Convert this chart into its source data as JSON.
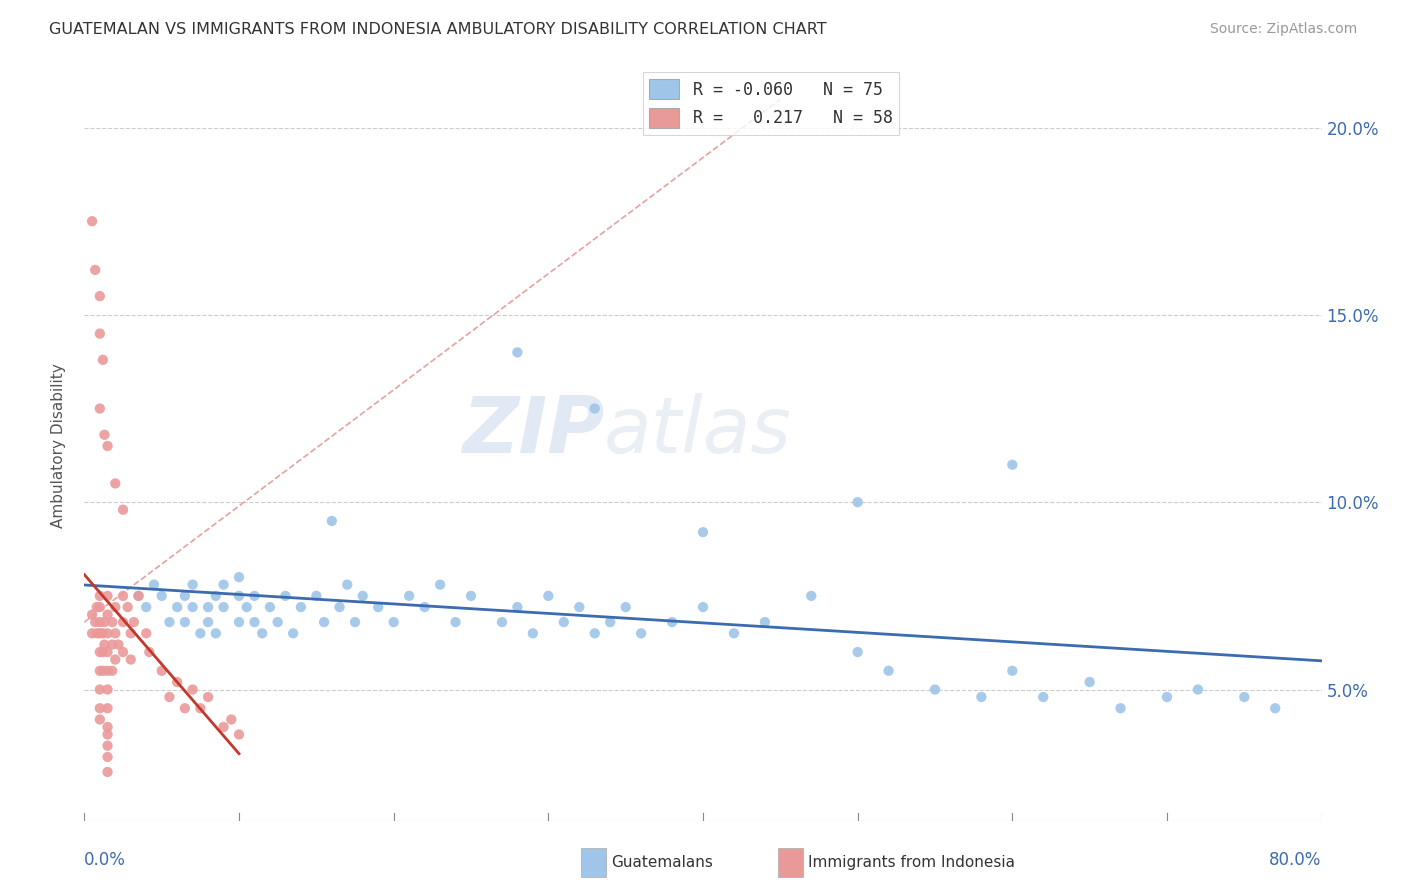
{
  "title": "GUATEMALAN VS IMMIGRANTS FROM INDONESIA AMBULATORY DISABILITY CORRELATION CHART",
  "source": "Source: ZipAtlas.com",
  "ylabel": "Ambulatory Disability",
  "yticks_labels": [
    "5.0%",
    "10.0%",
    "15.0%",
    "20.0%"
  ],
  "ytick_vals": [
    0.05,
    0.1,
    0.15,
    0.2
  ],
  "xmin": 0.0,
  "xmax": 0.8,
  "ymin": 0.015,
  "ymax": 0.215,
  "legend_blue_label": "Guatemalans",
  "legend_pink_label": "Immigrants from Indonesia",
  "r_blue": "-0.060",
  "n_blue": "75",
  "r_pink": "0.217",
  "n_pink": "58",
  "blue_color": "#9fc5e8",
  "pink_color": "#ea9999",
  "trend_blue_color": "#3c6bb0",
  "trend_pink_color": "#c0392b",
  "trend_dashed_color": "#e8a0a0",
  "watermark_zip": "ZIP",
  "watermark_atlas": "atlas",
  "blue_x": [
    0.035,
    0.04,
    0.045,
    0.05,
    0.055,
    0.06,
    0.065,
    0.065,
    0.07,
    0.07,
    0.075,
    0.08,
    0.08,
    0.085,
    0.085,
    0.09,
    0.09,
    0.1,
    0.1,
    0.1,
    0.105,
    0.11,
    0.11,
    0.115,
    0.12,
    0.125,
    0.13,
    0.135,
    0.14,
    0.15,
    0.155,
    0.16,
    0.165,
    0.17,
    0.175,
    0.18,
    0.19,
    0.2,
    0.21,
    0.22,
    0.23,
    0.24,
    0.25,
    0.27,
    0.28,
    0.29,
    0.3,
    0.31,
    0.32,
    0.33,
    0.34,
    0.35,
    0.36,
    0.38,
    0.4,
    0.42,
    0.44,
    0.47,
    0.5,
    0.52,
    0.55,
    0.58,
    0.6,
    0.62,
    0.65,
    0.67,
    0.7,
    0.72,
    0.75,
    0.77,
    0.5,
    0.33,
    0.28,
    0.6,
    0.4
  ],
  "blue_y": [
    0.075,
    0.072,
    0.078,
    0.075,
    0.068,
    0.072,
    0.075,
    0.068,
    0.072,
    0.078,
    0.065,
    0.072,
    0.068,
    0.075,
    0.065,
    0.072,
    0.078,
    0.068,
    0.075,
    0.08,
    0.072,
    0.068,
    0.075,
    0.065,
    0.072,
    0.068,
    0.075,
    0.065,
    0.072,
    0.075,
    0.068,
    0.095,
    0.072,
    0.078,
    0.068,
    0.075,
    0.072,
    0.068,
    0.075,
    0.072,
    0.078,
    0.068,
    0.075,
    0.068,
    0.072,
    0.065,
    0.075,
    0.068,
    0.072,
    0.065,
    0.068,
    0.072,
    0.065,
    0.068,
    0.072,
    0.065,
    0.068,
    0.075,
    0.06,
    0.055,
    0.05,
    0.048,
    0.055,
    0.048,
    0.052,
    0.045,
    0.048,
    0.05,
    0.048,
    0.045,
    0.1,
    0.125,
    0.14,
    0.11,
    0.092
  ],
  "pink_x": [
    0.005,
    0.005,
    0.007,
    0.008,
    0.008,
    0.01,
    0.01,
    0.01,
    0.01,
    0.01,
    0.01,
    0.01,
    0.01,
    0.01,
    0.012,
    0.012,
    0.012,
    0.013,
    0.013,
    0.015,
    0.015,
    0.015,
    0.015,
    0.015,
    0.015,
    0.015,
    0.015,
    0.015,
    0.015,
    0.015,
    0.015,
    0.018,
    0.018,
    0.018,
    0.02,
    0.02,
    0.02,
    0.022,
    0.025,
    0.025,
    0.025,
    0.028,
    0.03,
    0.03,
    0.032,
    0.035,
    0.04,
    0.042,
    0.05,
    0.055,
    0.06,
    0.065,
    0.07,
    0.075,
    0.08,
    0.09,
    0.095,
    0.1
  ],
  "pink_y": [
    0.07,
    0.065,
    0.068,
    0.072,
    0.065,
    0.075,
    0.068,
    0.072,
    0.065,
    0.06,
    0.055,
    0.05,
    0.045,
    0.042,
    0.065,
    0.06,
    0.055,
    0.068,
    0.062,
    0.075,
    0.07,
    0.065,
    0.06,
    0.055,
    0.05,
    0.045,
    0.04,
    0.038,
    0.035,
    0.032,
    0.028,
    0.068,
    0.062,
    0.055,
    0.072,
    0.065,
    0.058,
    0.062,
    0.075,
    0.068,
    0.06,
    0.072,
    0.065,
    0.058,
    0.068,
    0.075,
    0.065,
    0.06,
    0.055,
    0.048,
    0.052,
    0.045,
    0.05,
    0.045,
    0.048,
    0.04,
    0.042,
    0.038
  ],
  "pink_outlier_x": [
    0.005,
    0.007,
    0.01,
    0.01,
    0.01,
    0.012,
    0.013,
    0.015,
    0.02,
    0.025
  ],
  "pink_outlier_y": [
    0.175,
    0.162,
    0.155,
    0.145,
    0.125,
    0.138,
    0.118,
    0.115,
    0.105,
    0.098
  ]
}
